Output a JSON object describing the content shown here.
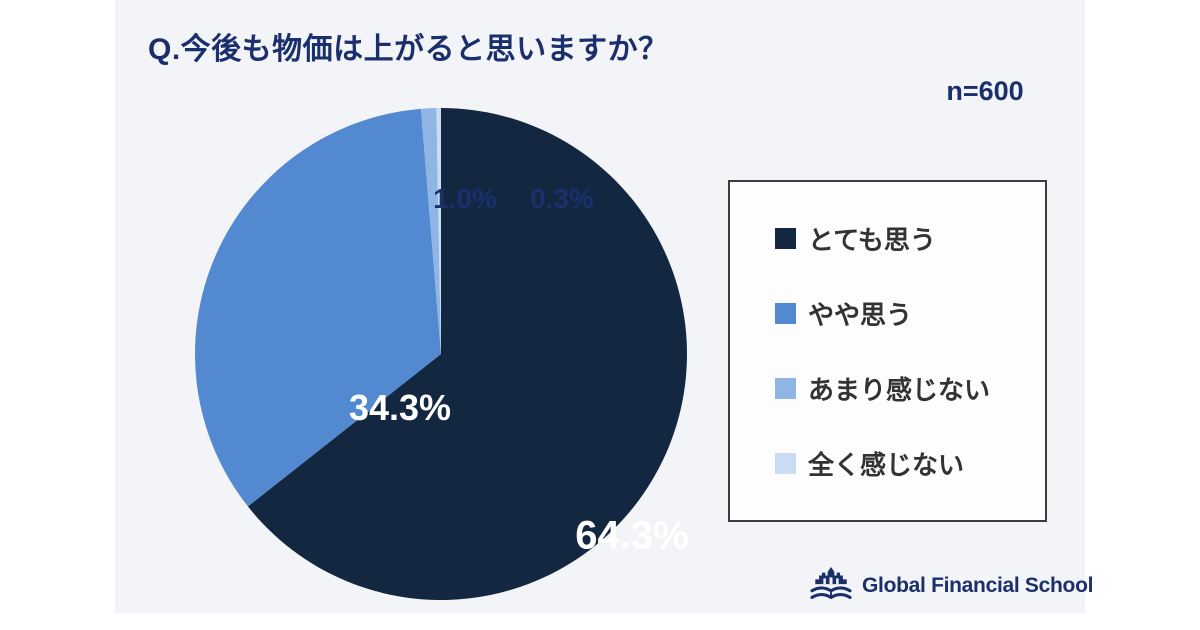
{
  "header": {
    "title": "Q.今後も物価は上がると思いますか？",
    "sample_size": "n=600"
  },
  "chart_data": {
    "type": "pie",
    "title": "Q.今後も物価は上がると思いますか？",
    "sample_size": 600,
    "start_angle_deg": 0,
    "direction": "clockwise",
    "legend_position": "right",
    "slices": [
      {
        "key": "totemo-omou",
        "label": "とても思う",
        "value": 64.3,
        "display": "64.3%",
        "color": "#132741"
      },
      {
        "key": "yaya-omou",
        "label": "やや思う",
        "value": 34.3,
        "display": "34.3%",
        "color": "#5289d0"
      },
      {
        "key": "amari-kanjinai",
        "label": "あまり感じない",
        "value": 1.0,
        "display": "1.0%",
        "color": "#8fb5e5"
      },
      {
        "key": "mattaku-kanjinai",
        "label": "全く感じない",
        "value": 0.3,
        "display": "0.3%",
        "color": "#c9dcf3"
      }
    ]
  },
  "footer": {
    "brand": "Global Financial School"
  }
}
